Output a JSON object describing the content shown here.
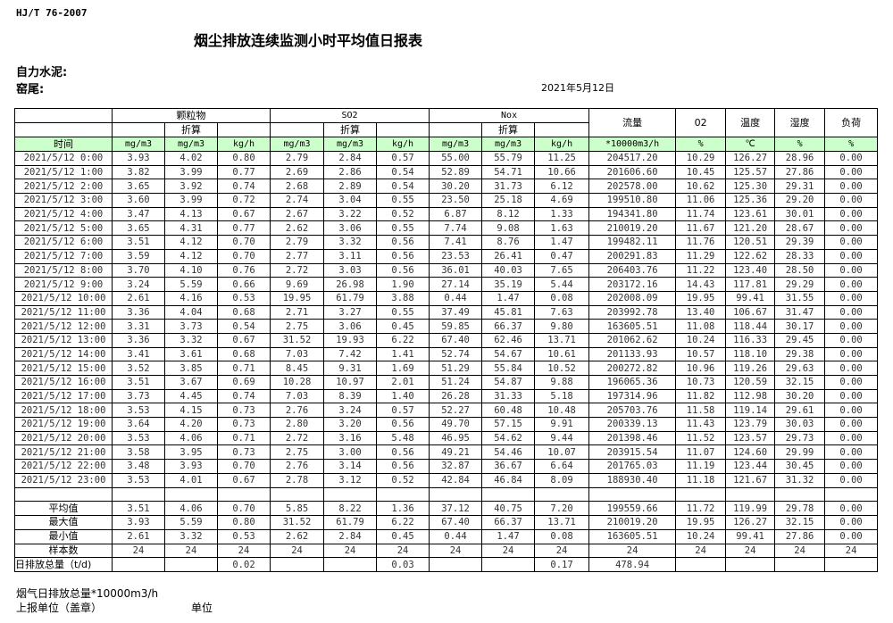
{
  "standard": "HJ/T  76-2007",
  "title": "烟尘排放连续监测小时平均值日报表",
  "company": "自力水泥:",
  "section": "窑尾:",
  "date": "2021年5月12日",
  "header": {
    "groups": [
      "颗粒物",
      "SO2",
      "Nox"
    ],
    "converted": "折算",
    "flow": "流量",
    "o2": "02",
    "temp": "温度",
    "humidity": "湿度",
    "load": "负荷",
    "time": "时间",
    "units": [
      "mg/m3",
      "mg/m3",
      "kg/h",
      "mg/m3",
      "mg/m3",
      "kg/h",
      "mg/m3",
      "mg/m3",
      "kg/h",
      "*10000m3/h",
      "%",
      "℃",
      "%",
      "%"
    ]
  },
  "rows": [
    [
      "2021/5/12 0:00",
      "3.93",
      "4.02",
      "0.80",
      "2.79",
      "2.84",
      "0.57",
      "55.00",
      "55.79",
      "11.25",
      "204517.20",
      "10.29",
      "126.27",
      "28.96",
      "0.00"
    ],
    [
      "2021/5/12 1:00",
      "3.82",
      "3.99",
      "0.77",
      "2.69",
      "2.86",
      "0.54",
      "52.89",
      "54.71",
      "10.66",
      "201606.60",
      "10.45",
      "125.57",
      "27.86",
      "0.00"
    ],
    [
      "2021/5/12 2:00",
      "3.65",
      "3.92",
      "0.74",
      "2.68",
      "2.89",
      "0.54",
      "30.20",
      "31.73",
      "6.12",
      "202578.00",
      "10.62",
      "125.30",
      "29.31",
      "0.00"
    ],
    [
      "2021/5/12 3:00",
      "3.60",
      "3.99",
      "0.72",
      "2.74",
      "3.04",
      "0.55",
      "23.50",
      "25.18",
      "4.69",
      "199510.80",
      "11.06",
      "125.36",
      "29.20",
      "0.00"
    ],
    [
      "2021/5/12 4:00",
      "3.47",
      "4.13",
      "0.67",
      "2.67",
      "3.22",
      "0.52",
      "6.87",
      "8.12",
      "1.33",
      "194341.80",
      "11.74",
      "123.61",
      "30.01",
      "0.00"
    ],
    [
      "2021/5/12 5:00",
      "3.65",
      "4.31",
      "0.77",
      "2.62",
      "3.06",
      "0.55",
      "7.74",
      "9.08",
      "1.63",
      "210019.20",
      "11.67",
      "121.20",
      "28.67",
      "0.00"
    ],
    [
      "2021/5/12 6:00",
      "3.51",
      "4.12",
      "0.70",
      "2.79",
      "3.32",
      "0.56",
      "7.41",
      "8.76",
      "1.47",
      "199482.11",
      "11.76",
      "120.51",
      "29.39",
      "0.00"
    ],
    [
      "2021/5/12 7:00",
      "3.59",
      "4.12",
      "0.70",
      "2.77",
      "3.11",
      "0.56",
      "23.53",
      "26.41",
      "0.47",
      "200291.83",
      "11.29",
      "122.62",
      "28.33",
      "0.00"
    ],
    [
      "2021/5/12 8:00",
      "3.70",
      "4.10",
      "0.76",
      "2.72",
      "3.03",
      "0.56",
      "36.01",
      "40.03",
      "7.65",
      "206403.76",
      "11.22",
      "123.40",
      "28.50",
      "0.00"
    ],
    [
      "2021/5/12 9:00",
      "3.24",
      "5.59",
      "0.66",
      "9.69",
      "26.98",
      "1.90",
      "27.14",
      "35.19",
      "5.44",
      "203172.16",
      "14.43",
      "117.81",
      "29.29",
      "0.00"
    ],
    [
      "2021/5/12 10:00",
      "2.61",
      "4.16",
      "0.53",
      "19.95",
      "61.79",
      "3.88",
      "0.44",
      "1.47",
      "0.08",
      "202008.09",
      "19.95",
      "99.41",
      "31.55",
      "0.00"
    ],
    [
      "2021/5/12 11:00",
      "3.36",
      "4.04",
      "0.68",
      "2.71",
      "3.27",
      "0.55",
      "37.49",
      "45.81",
      "7.63",
      "203992.78",
      "13.40",
      "106.67",
      "31.47",
      "0.00"
    ],
    [
      "2021/5/12 12:00",
      "3.31",
      "3.73",
      "0.54",
      "2.75",
      "3.06",
      "0.45",
      "59.85",
      "66.37",
      "9.80",
      "163605.51",
      "11.08",
      "118.44",
      "30.17",
      "0.00"
    ],
    [
      "2021/5/12 13:00",
      "3.36",
      "3.32",
      "0.67",
      "31.52",
      "19.93",
      "6.22",
      "67.40",
      "62.46",
      "13.71",
      "201062.62",
      "10.24",
      "116.33",
      "29.45",
      "0.00"
    ],
    [
      "2021/5/12 14:00",
      "3.41",
      "3.61",
      "0.68",
      "7.03",
      "7.42",
      "1.41",
      "52.74",
      "54.67",
      "10.61",
      "201133.93",
      "10.57",
      "118.10",
      "29.38",
      "0.00"
    ],
    [
      "2021/5/12 15:00",
      "3.52",
      "3.85",
      "0.71",
      "8.45",
      "9.31",
      "1.69",
      "51.29",
      "55.84",
      "10.52",
      "200272.82",
      "10.96",
      "119.26",
      "29.63",
      "0.00"
    ],
    [
      "2021/5/12 16:00",
      "3.51",
      "3.67",
      "0.69",
      "10.28",
      "10.97",
      "2.01",
      "51.24",
      "54.87",
      "9.88",
      "196065.36",
      "10.73",
      "120.59",
      "32.15",
      "0.00"
    ],
    [
      "2021/5/12 17:00",
      "3.73",
      "4.45",
      "0.74",
      "7.03",
      "8.39",
      "1.40",
      "26.28",
      "31.33",
      "5.18",
      "197314.96",
      "11.82",
      "112.98",
      "30.20",
      "0.00"
    ],
    [
      "2021/5/12 18:00",
      "3.53",
      "4.15",
      "0.73",
      "2.76",
      "3.24",
      "0.57",
      "52.27",
      "60.48",
      "10.48",
      "205703.76",
      "11.58",
      "119.14",
      "29.61",
      "0.00"
    ],
    [
      "2021/5/12 19:00",
      "3.64",
      "4.20",
      "0.73",
      "2.80",
      "3.20",
      "0.56",
      "49.70",
      "57.15",
      "9.91",
      "200339.13",
      "11.43",
      "123.79",
      "30.03",
      "0.00"
    ],
    [
      "2021/5/12 20:00",
      "3.53",
      "4.06",
      "0.71",
      "2.72",
      "3.16",
      "5.48",
      "46.95",
      "54.62",
      "9.44",
      "201398.46",
      "11.52",
      "123.57",
      "29.73",
      "0.00"
    ],
    [
      "2021/5/12 21:00",
      "3.58",
      "3.95",
      "0.73",
      "2.75",
      "3.00",
      "0.56",
      "49.21",
      "54.46",
      "10.07",
      "203915.54",
      "11.07",
      "124.60",
      "29.99",
      "0.00"
    ],
    [
      "2021/5/12 22:00",
      "3.48",
      "3.93",
      "0.70",
      "2.76",
      "3.14",
      "0.56",
      "32.87",
      "36.67",
      "6.64",
      "201765.03",
      "11.19",
      "123.44",
      "30.45",
      "0.00"
    ],
    [
      "2021/5/12 23:00",
      "3.53",
      "4.01",
      "0.67",
      "2.78",
      "3.12",
      "0.52",
      "42.84",
      "46.84",
      "8.09",
      "188930.40",
      "11.18",
      "121.67",
      "31.32",
      "0.00"
    ]
  ],
  "summary": [
    [
      "平均值",
      "3.51",
      "4.06",
      "0.70",
      "5.85",
      "8.22",
      "1.36",
      "37.12",
      "40.75",
      "7.20",
      "199559.66",
      "11.72",
      "119.99",
      "29.78",
      "0.00"
    ],
    [
      "最大值",
      "3.93",
      "5.59",
      "0.80",
      "31.52",
      "61.79",
      "6.22",
      "67.40",
      "66.37",
      "13.71",
      "210019.20",
      "19.95",
      "126.27",
      "32.15",
      "0.00"
    ],
    [
      "最小值",
      "2.61",
      "3.32",
      "0.53",
      "2.62",
      "2.84",
      "0.45",
      "0.44",
      "1.47",
      "0.08",
      "163605.51",
      "10.24",
      "99.41",
      "27.86",
      "0.00"
    ],
    [
      "样本数",
      "24",
      "24",
      "24",
      "24",
      "24",
      "24",
      "24",
      "24",
      "24",
      "24",
      "24",
      "24",
      "24",
      "24"
    ],
    [
      "日排放总量（t/d)",
      "",
      "",
      "0.02",
      "",
      "",
      "0.03",
      "",
      "",
      "0.17",
      "478.94",
      "",
      "",
      "",
      ""
    ]
  ],
  "footer": {
    "flue_total": "烟气日排放总量*10000m3/h",
    "reporting_unit": "上报单位（盖章）",
    "unit": "单位"
  }
}
